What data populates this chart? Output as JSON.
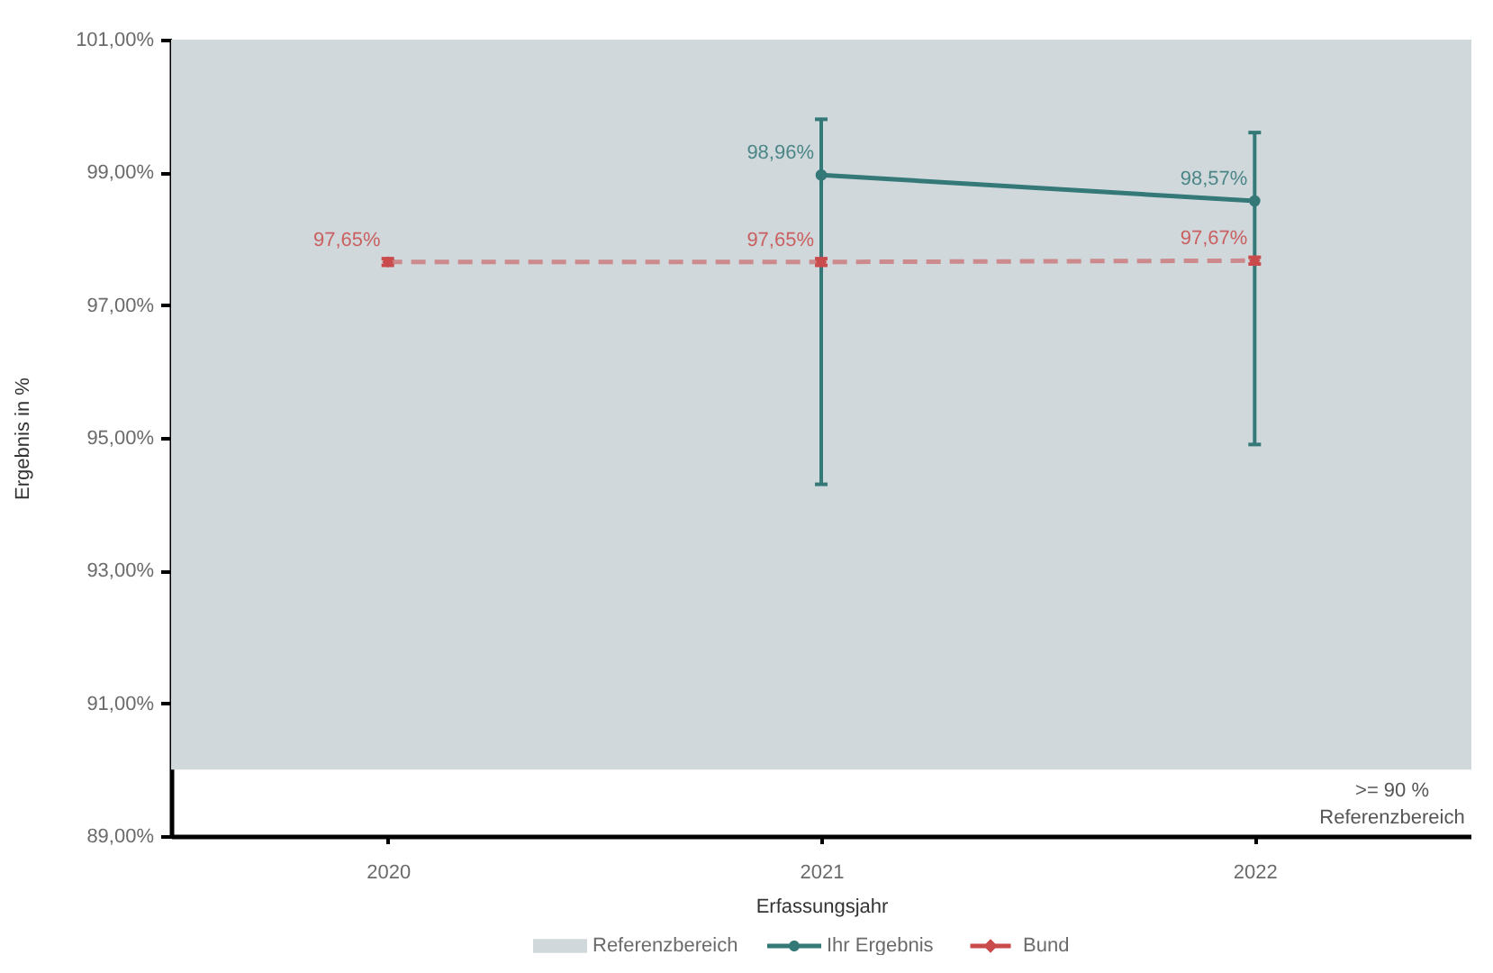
{
  "chart_data": {
    "type": "line",
    "xlabel": "Erfassungsjahr",
    "ylabel": "Ergebnis in %",
    "categories": [
      "2020",
      "2021",
      "2022"
    ],
    "ylim": [
      89,
      101
    ],
    "yticks": [
      {
        "value": 89,
        "label": "89,00%"
      },
      {
        "value": 91,
        "label": "91,00%"
      },
      {
        "value": 93,
        "label": "93,00%"
      },
      {
        "value": 95,
        "label": "95,00%"
      },
      {
        "value": 97,
        "label": "97,00%"
      },
      {
        "value": 99,
        "label": "99,00%"
      },
      {
        "value": 101,
        "label": "101,00%"
      }
    ],
    "series": [
      {
        "name": "Ihr Ergebnis",
        "color": "#347878",
        "marker": "circle",
        "line_style": "solid",
        "values": [
          null,
          98.96,
          98.57
        ],
        "errors": [
          null,
          [
            94.3,
            99.8
          ],
          [
            94.9,
            99.6
          ]
        ],
        "value_labels": [
          null,
          "98,96%",
          "98,57%"
        ]
      },
      {
        "name": "Bund",
        "color": "#c94b4b",
        "marker": "diamond",
        "line_style": "dashed",
        "values": [
          97.65,
          97.65,
          97.67
        ],
        "errors": [
          0.05,
          0.05,
          0.05
        ],
        "value_labels": [
          "97,65%",
          "97,65%",
          "97,67%"
        ]
      }
    ],
    "bands": [
      {
        "axis": "y",
        "from": 90,
        "to": 101,
        "label": "Referenzbereich",
        "color": "#d0d8dc"
      }
    ],
    "annotations": [
      ">= 90 %\nReferenzbereich"
    ],
    "legend": "bottom"
  }
}
